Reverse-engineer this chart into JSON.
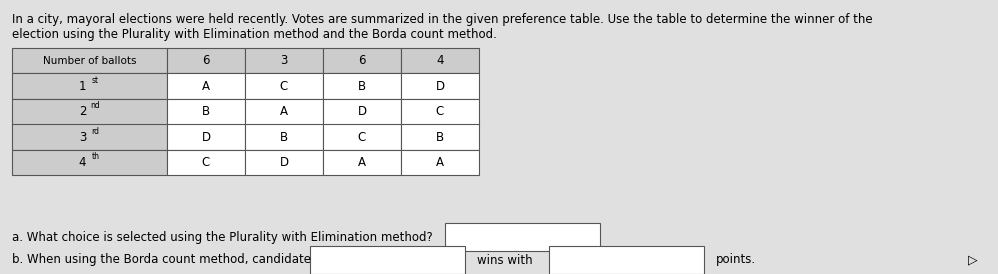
{
  "title_line1": "In a city, mayoral elections were held recently. Votes are summarized in the given preference table. Use the table to determine the winner of the",
  "title_line2": "election using the Plurality with Elimination method and the Borda count method.",
  "table_headers": [
    "Number of ballots",
    "6",
    "3",
    "6",
    "4"
  ],
  "table_rows": [
    [
      "1st",
      "A",
      "C",
      "B",
      "D"
    ],
    [
      "2nd",
      "B",
      "A",
      "D",
      "C"
    ],
    [
      "3rd",
      "D",
      "B",
      "C",
      "B"
    ],
    [
      "4th",
      "C",
      "D",
      "A",
      "A"
    ]
  ],
  "row_labels_base": [
    "1",
    "2",
    "3",
    "4"
  ],
  "row_labels_sup": [
    "st",
    "nd",
    "rd",
    "th"
  ],
  "question_a": "a. What choice is selected using the Plurality with Elimination method?",
  "question_b_pre": "b. When using the Borda count method, candidate",
  "question_b_mid": "wins with",
  "question_b_post": "points.",
  "bg_color": "#e0e0e0",
  "cell_bg_white": "#ffffff",
  "cell_bg_gray": "#cccccc",
  "border_color": "#555555",
  "text_color": "#000000",
  "input_box_color": "#ffffff",
  "fig_width": 9.98,
  "fig_height": 2.74,
  "dpi": 100,
  "title_fontsize": 8.5,
  "table_fontsize": 8.5,
  "question_fontsize": 8.5
}
